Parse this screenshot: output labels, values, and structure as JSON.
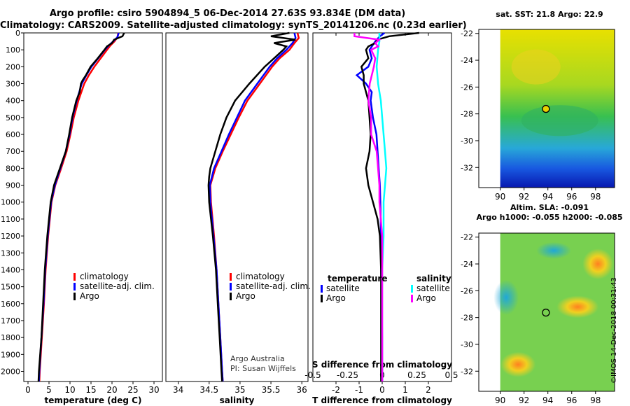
{
  "header": {
    "title_line1": "Argo profile: csiro 5904894_5 06-Dec-2014 27.63S 93.834E (DM data)",
    "title_line2": "Climatology: CARS2009. Satellite-adjusted climatology: synTS_20141206.nc (0.23d earlier)"
  },
  "credits": {
    "line1": "Argo Australia",
    "line2": "PI: Susan Wijffels",
    "imos": "©IMOS 14-Dec-2018 00:31:43"
  },
  "maps": {
    "sst_title": "sat. SST: 21.8 Argo: 22.9",
    "sla_title1": "Altim. SLA: -0.091",
    "sla_title2": "Argo h1000: -0.055 h2000: -0.085",
    "lat_ticks": [
      "-22",
      "-24",
      "-26",
      "-28",
      "-30",
      "-32"
    ],
    "lon_ticks": [
      "90",
      "92",
      "94",
      "96",
      "98"
    ],
    "marker": {
      "lat": -27.63,
      "lon": 93.834
    }
  },
  "colors": {
    "climatology": "#ff0000",
    "satellite": "#0000ff",
    "argo": "#000000",
    "sat_salinity": "#00ffff",
    "argo_salinity": "#ff00ff"
  },
  "chart_data": [
    {
      "type": "line",
      "xlabel": "temperature (deg C)",
      "ylabel": "",
      "xlim": [
        -1,
        32
      ],
      "ylim": [
        2060,
        0
      ],
      "x_ticks": [
        "0",
        "5",
        "10",
        "15",
        "20",
        "25",
        "30"
      ],
      "y_ticks": [
        "0",
        "100",
        "200",
        "300",
        "400",
        "500",
        "600",
        "700",
        "800",
        "900",
        "1000",
        "1100",
        "1200",
        "1300",
        "1400",
        "1500",
        "1600",
        "1700",
        "1800",
        "1900",
        "2000"
      ],
      "legend": [
        "climatology",
        "satellite-adj. clim.",
        "Argo"
      ],
      "series": [
        {
          "name": "climatology",
          "depth": [
            0,
            25,
            50,
            75,
            100,
            150,
            200,
            250,
            300,
            400,
            500,
            600,
            700,
            800,
            900,
            1000,
            1200,
            1400,
            1600,
            1800,
            2000,
            2060
          ],
          "values": [
            21.5,
            21.3,
            20.6,
            19.6,
            18.8,
            17.3,
            15.8,
            14.5,
            13.4,
            12.0,
            10.9,
            10.1,
            9.2,
            7.9,
            6.5,
            5.6,
            4.8,
            4.2,
            3.8,
            3.3,
            2.8,
            2.7
          ]
        },
        {
          "name": "satellite-adj. clim.",
          "depth": [
            0,
            25,
            50,
            75,
            100,
            150,
            200,
            250,
            300,
            400,
            500,
            600,
            700,
            800,
            900,
            1000,
            1200,
            1400,
            1600,
            1800,
            2000,
            2060
          ],
          "values": [
            21.6,
            21.3,
            20.3,
            19.2,
            18.3,
            16.7,
            15.1,
            13.9,
            12.8,
            11.6,
            10.6,
            9.9,
            9.0,
            7.7,
            6.4,
            5.5,
            4.7,
            4.1,
            3.7,
            3.2,
            2.7,
            2.6
          ]
        },
        {
          "name": "Argo",
          "depth": [
            0,
            20,
            40,
            60,
            80,
            100,
            150,
            200,
            250,
            280,
            300,
            350,
            400,
            500,
            600,
            700,
            800,
            900,
            1000,
            1200,
            1400,
            1600,
            1800,
            2000,
            2060
          ],
          "values": [
            22.9,
            22.5,
            20.5,
            20.0,
            18.8,
            18.2,
            16.6,
            14.9,
            13.8,
            13.0,
            12.6,
            12.3,
            11.5,
            10.5,
            9.8,
            9.0,
            7.6,
            6.2,
            5.4,
            4.6,
            4.0,
            3.6,
            3.2,
            2.6,
            2.5
          ]
        }
      ]
    },
    {
      "type": "line",
      "xlabel": "salinity",
      "ylabel": "",
      "xlim": [
        33.8,
        36.1
      ],
      "ylim": [
        2060,
        0
      ],
      "x_ticks": [
        "34",
        "34.5",
        "35",
        "35.5",
        "36"
      ],
      "legend": [
        "climatology",
        "satellite-adj. clim.",
        "Argo"
      ],
      "series": [
        {
          "name": "climatology",
          "depth": [
            0,
            30,
            60,
            100,
            150,
            200,
            300,
            400,
            500,
            600,
            700,
            800,
            900,
            1000,
            1200,
            1400,
            1600,
            1800,
            2000,
            2060
          ],
          "values": [
            35.93,
            35.95,
            35.88,
            35.8,
            35.64,
            35.52,
            35.32,
            35.12,
            34.98,
            34.85,
            34.72,
            34.6,
            34.52,
            34.53,
            34.58,
            34.62,
            34.65,
            34.68,
            34.71,
            34.72
          ]
        },
        {
          "name": "satellite-adj. clim.",
          "depth": [
            0,
            30,
            60,
            100,
            150,
            200,
            300,
            400,
            500,
            600,
            700,
            800,
            900,
            1000,
            1200,
            1400,
            1600,
            1800,
            2000,
            2060
          ],
          "values": [
            35.88,
            35.9,
            35.85,
            35.75,
            35.6,
            35.48,
            35.28,
            35.08,
            34.95,
            34.82,
            34.7,
            34.58,
            34.51,
            34.52,
            34.57,
            34.62,
            34.65,
            34.68,
            34.71,
            34.72
          ]
        },
        {
          "name": "Argo",
          "depth": [
            0,
            20,
            40,
            60,
            80,
            100,
            150,
            200,
            300,
            400,
            500,
            600,
            700,
            800,
            850,
            900,
            1000,
            1200,
            1400,
            1600,
            1800,
            2000,
            2060
          ],
          "values": [
            35.8,
            35.5,
            35.9,
            35.55,
            35.75,
            35.7,
            35.55,
            35.4,
            35.15,
            34.92,
            34.78,
            34.68,
            34.6,
            34.52,
            34.5,
            34.49,
            34.5,
            34.56,
            34.61,
            34.64,
            34.67,
            34.7,
            34.71
          ]
        }
      ]
    },
    {
      "type": "line",
      "xlabel": "T difference from climatology",
      "top_label": "S difference from climatology",
      "xlim": [
        -3,
        3
      ],
      "ylim": [
        2060,
        0
      ],
      "x_ticks": [
        "-2",
        "-1",
        "0",
        "1",
        "2"
      ],
      "top_x_ticks": [
        "-0.5",
        "-0.25",
        "0",
        "0.25",
        "0.5"
      ],
      "legend_headers": [
        "temperature",
        "salinity"
      ],
      "legend": [
        "satellite",
        "Argo",
        "satellite",
        "Argo"
      ],
      "series": [
        {
          "name": "satellite",
          "group": "temperature",
          "depth": [
            0,
            20,
            50,
            100,
            150,
            200,
            250,
            300,
            350,
            400,
            500,
            600,
            700,
            800,
            900,
            1000,
            1200,
            1400,
            1600,
            1800,
            2000,
            2060
          ],
          "values": [
            0.1,
            -0.1,
            -0.3,
            -0.55,
            -0.45,
            -0.6,
            -1.1,
            -0.7,
            -0.45,
            -0.5,
            -0.4,
            -0.25,
            -0.2,
            -0.15,
            -0.1,
            -0.08,
            -0.05,
            -0.05,
            -0.02,
            0.0,
            0.0,
            0.0
          ]
        },
        {
          "name": "Argo",
          "group": "temperature",
          "depth": [
            0,
            20,
            40,
            60,
            80,
            100,
            150,
            200,
            250,
            300,
            350,
            400,
            500,
            600,
            700,
            800,
            900,
            1000,
            1100,
            1200,
            1400,
            1600,
            1800,
            2000,
            2060
          ],
          "values": [
            1.6,
            0.3,
            -0.2,
            -0.3,
            -0.6,
            -0.7,
            -0.6,
            -0.9,
            -0.8,
            -0.8,
            -0.7,
            -0.6,
            -0.55,
            -0.5,
            -0.55,
            -0.7,
            -0.6,
            -0.4,
            -0.2,
            -0.1,
            -0.05,
            -0.05,
            -0.05,
            -0.05,
            -0.05
          ]
        },
        {
          "name": "satellite",
          "group": "salinity",
          "depth": [
            0,
            50,
            100,
            200,
            300,
            400,
            500,
            600,
            700,
            800,
            900,
            1000,
            1200,
            1400,
            1600,
            1800,
            2000,
            2060
          ],
          "values": [
            -0.02,
            -0.02,
            -0.03,
            -0.04,
            -0.03,
            -0.01,
            0.0,
            0.01,
            0.02,
            0.03,
            0.02,
            0.01,
            0.01,
            0.0,
            0.0,
            0.0,
            0.0,
            0.0
          ]
        },
        {
          "name": "Argo",
          "group": "salinity",
          "depth": [
            0,
            20,
            40,
            60,
            80,
            100,
            150,
            200,
            300,
            400,
            500,
            600,
            700,
            800,
            900,
            1000,
            1200,
            1400,
            1600,
            1800,
            2000,
            2060
          ],
          "values": [
            -0.2,
            -0.2,
            -0.02,
            -0.05,
            -0.03,
            -0.08,
            -0.05,
            -0.06,
            -0.09,
            -0.1,
            -0.08,
            -0.08,
            -0.04,
            -0.03,
            -0.02,
            -0.02,
            0.0,
            0.0,
            0.0,
            0.0,
            0.0,
            0.0
          ]
        }
      ]
    }
  ]
}
